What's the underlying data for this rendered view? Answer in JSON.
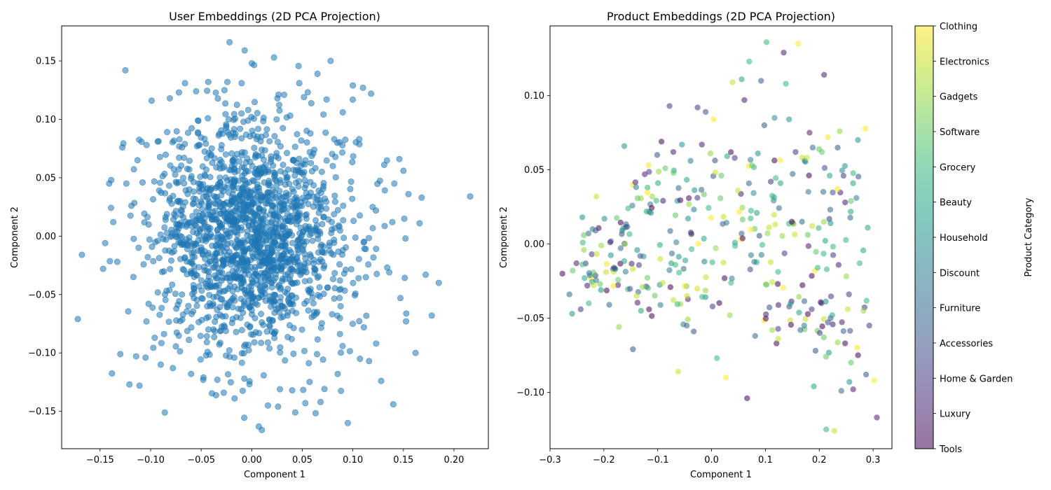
{
  "chart_data": [
    {
      "type": "scatter",
      "title": "User Embeddings (2D PCA Projection)",
      "xlabel": "Component 1",
      "ylabel": "Component 2",
      "xlim": [
        -0.188,
        0.234
      ],
      "ylim": [
        -0.182,
        0.18
      ],
      "xticks": [
        -0.15,
        -0.1,
        -0.05,
        0.0,
        0.05,
        0.1,
        0.15,
        0.2
      ],
      "xtick_labels": [
        "−0.15",
        "−0.10",
        "−0.05",
        "0.00",
        "0.05",
        "0.10",
        "0.15",
        "0.20"
      ],
      "yticks": [
        -0.15,
        -0.1,
        -0.05,
        0.0,
        0.05,
        0.1,
        0.15
      ],
      "ytick_labels": [
        "−0.15",
        "−0.10",
        "−0.05",
        "0.00",
        "0.05",
        "0.10",
        "0.15"
      ],
      "grid": false,
      "marker_color": "#1f77b4",
      "marker_alpha": 0.55,
      "series": [
        {
          "points": [
            [
              0.216,
              0.034
            ],
            [
              -0.172,
              -0.071
            ],
            [
              -0.168,
              -0.016
            ],
            [
              0.185,
              -0.04
            ],
            [
              0.178,
              -0.068
            ],
            [
              0.172,
              -0.033
            ],
            [
              0.168,
              0.033
            ],
            [
              0.166,
              0.011
            ],
            [
              0.162,
              -0.1
            ],
            [
              0.155,
              0.036
            ],
            [
              0.15,
              0.056
            ],
            [
              0.146,
              0.066
            ],
            [
              0.14,
              -0.144
            ],
            [
              0.152,
              -0.002
            ],
            [
              0.147,
              -0.053
            ],
            [
              0.141,
              0.045
            ],
            [
              0.139,
              0.012
            ],
            [
              0.136,
              -0.031
            ],
            [
              0.131,
              0.061
            ],
            [
              0.128,
              -0.124
            ],
            [
              -0.145,
              -0.006
            ],
            [
              -0.141,
              0.045
            ],
            [
              -0.139,
              0.048
            ],
            [
              -0.137,
              0.012
            ],
            [
              -0.133,
              -0.022
            ],
            [
              -0.13,
              -0.101
            ],
            [
              -0.128,
              0.076
            ],
            [
              -0.125,
              0.142
            ],
            [
              -0.124,
              0.045
            ],
            [
              -0.121,
              -0.127
            ],
            [
              -0.119,
              0.026
            ],
            [
              -0.117,
              -0.035
            ],
            [
              -0.113,
              0.065
            ],
            [
              -0.111,
              -0.128
            ],
            [
              -0.108,
              0.046
            ],
            [
              -0.105,
              -0.104
            ],
            [
              -0.104,
              0.078
            ],
            [
              -0.102,
              -0.058
            ],
            [
              -0.099,
              0.116
            ],
            [
              -0.096,
              -0.087
            ],
            [
              -0.093,
              0.081
            ],
            [
              -0.09,
              -0.11
            ],
            [
              -0.086,
              -0.151
            ],
            [
              -0.081,
              0.118
            ],
            [
              -0.078,
              -0.113
            ],
            [
              -0.072,
              0.123
            ],
            [
              -0.066,
              0.131
            ],
            [
              -0.06,
              -0.118
            ],
            [
              -0.055,
              0.124
            ],
            [
              -0.048,
              -0.123
            ],
            [
              -0.043,
              0.132
            ],
            [
              -0.034,
              -0.123
            ],
            [
              -0.027,
              0.125
            ],
            [
              -0.022,
              0.166
            ],
            [
              -0.017,
              -0.139
            ],
            [
              -0.01,
              0.131
            ],
            [
              -0.007,
              0.159
            ],
            [
              0.0,
              0.148
            ],
            [
              0.007,
              -0.163
            ],
            [
              0.01,
              -0.166
            ],
            [
              0.016,
              -0.145
            ],
            [
              0.022,
              0.153
            ],
            [
              0.026,
              -0.146
            ],
            [
              0.032,
              0.121
            ],
            [
              0.04,
              -0.132
            ],
            [
              0.047,
              0.131
            ],
            [
              0.053,
              -0.143
            ],
            [
              0.065,
              0.139
            ],
            [
              0.068,
              -0.142
            ],
            [
              0.074,
              0.117
            ],
            [
              0.078,
              0.15
            ],
            [
              0.085,
              -0.118
            ],
            [
              0.09,
              0.106
            ],
            [
              0.095,
              -0.16
            ],
            [
              0.1,
              0.129
            ],
            [
              0.107,
              -0.105
            ],
            [
              0.11,
              0.127
            ],
            [
              0.116,
              -0.107
            ],
            [
              0.118,
              0.122
            ],
            [
              0.123,
              -0.092
            ]
          ],
          "core_cluster_std": 0.048,
          "core_cluster_count": 1700,
          "core_cluster_seed": 7
        }
      ]
    },
    {
      "type": "scatter",
      "title": "Product Embeddings (2D PCA Projection)",
      "xlabel": "Component 1",
      "ylabel": "Component 2",
      "xlim": [
        -0.3,
        0.335
      ],
      "ylim": [
        -0.138,
        0.147
      ],
      "xticks": [
        -0.3,
        -0.2,
        -0.1,
        0.0,
        0.1,
        0.2,
        0.3
      ],
      "xtick_labels": [
        "−0.3",
        "−0.2",
        "−0.1",
        "0.0",
        "0.1",
        "0.2",
        "0.3"
      ],
      "yticks": [
        -0.1,
        -0.05,
        0.0,
        0.05,
        0.1
      ],
      "ytick_labels": [
        "−0.10",
        "−0.05",
        "0.00",
        "0.05",
        "0.10"
      ],
      "grid": false,
      "marker_alpha": 0.55,
      "colorbar_label": "Product Category",
      "categories": [
        "Tools",
        "Luxury",
        "Home & Garden",
        "Accessories",
        "Furniture",
        "Discount",
        "Household",
        "Beauty",
        "Grocery",
        "Software",
        "Gadgets",
        "Electronics",
        "Clothing"
      ],
      "colormap_stops": [
        "#440154",
        "#482878",
        "#3e4989",
        "#31688e",
        "#26828e",
        "#1f9e89",
        "#35b779",
        "#6ece58",
        "#b5de2b",
        "#fde725"
      ],
      "series": [
        {
          "points": [
            [
              0.307,
              -0.117,
              1
            ],
            [
              0.302,
              -0.092,
              12
            ],
            [
              0.293,
              -0.055,
              2
            ],
            [
              0.29,
              0.011,
              7
            ],
            [
              0.287,
              -0.088,
              3
            ],
            [
              0.282,
              -0.045,
              10
            ],
            [
              0.275,
              -0.013,
              8
            ],
            [
              0.272,
              -0.075,
              0
            ],
            [
              0.269,
              0.031,
              5
            ],
            [
              0.263,
              -0.098,
              1
            ],
            [
              0.259,
              -0.08,
              9
            ],
            [
              0.256,
              -0.093,
              6
            ],
            [
              0.253,
              -0.044,
              11
            ],
            [
              0.248,
              -0.067,
              0
            ],
            [
              0.245,
              0.046,
              2
            ],
            [
              0.241,
              -0.099,
              4
            ],
            [
              0.238,
              0.076,
              10
            ],
            [
              0.234,
              0.037,
              12
            ],
            [
              0.228,
              -0.126,
              11
            ],
            [
              0.224,
              -0.048,
              7
            ],
            [
              0.221,
              0.014,
              6
            ],
            [
              0.216,
              0.072,
              12
            ],
            [
              0.213,
              -0.125,
              8
            ],
            [
              0.209,
              0.114,
              1
            ],
            [
              0.205,
              0.062,
              9
            ],
            [
              0.201,
              -0.06,
              2
            ],
            [
              0.197,
              -0.016,
              8
            ],
            [
              0.193,
              -0.072,
              3
            ],
            [
              0.19,
              -0.096,
              7
            ],
            [
              0.186,
              -0.044,
              2
            ],
            [
              0.182,
              0.075,
              1
            ],
            [
              0.177,
              0.058,
              11
            ],
            [
              0.172,
              -0.055,
              5
            ],
            [
              0.168,
              0.015,
              4
            ],
            [
              0.161,
              0.135,
              12
            ],
            [
              0.156,
              0.062,
              2
            ],
            [
              0.149,
              0.015,
              0
            ],
            [
              0.144,
              0.084,
              6
            ],
            [
              0.138,
              0.108,
              8
            ],
            [
              0.134,
              0.129,
              1
            ],
            [
              0.128,
              0.041,
              7
            ],
            [
              0.123,
              -0.027,
              0
            ],
            [
              0.117,
              0.085,
              6
            ],
            [
              0.11,
              0.042,
              2
            ],
            [
              0.102,
              0.136,
              8
            ],
            [
              0.098,
              0.08,
              3
            ],
            [
              0.092,
              0.11,
              3
            ],
            [
              0.086,
              0.061,
              6
            ],
            [
              0.081,
              -0.062,
              4
            ],
            [
              0.075,
              0.053,
              9
            ],
            [
              0.07,
              0.123,
              8
            ],
            [
              0.066,
              -0.104,
              0
            ],
            [
              0.061,
              0.097,
              1
            ],
            [
              0.056,
              0.111,
              7
            ],
            [
              0.049,
              0.036,
              11
            ],
            [
              0.043,
              0.058,
              2
            ],
            [
              0.039,
              0.109,
              11
            ],
            [
              0.034,
              -0.048,
              10
            ],
            [
              0.027,
              -0.09,
              12
            ],
            [
              0.018,
              0.046,
              9
            ],
            [
              0.01,
              -0.077,
              8
            ],
            [
              0.004,
              0.084,
              12
            ],
            [
              -0.002,
              0.061,
              10
            ],
            [
              -0.011,
              0.089,
              3
            ],
            [
              -0.018,
              0.067,
              1
            ],
            [
              -0.026,
              0.092,
              2
            ],
            [
              -0.033,
              -0.059,
              3
            ],
            [
              -0.039,
              0.056,
              5
            ],
            [
              -0.046,
              -0.055,
              4
            ],
            [
              -0.055,
              0.067,
              6
            ],
            [
              -0.062,
              -0.086,
              11
            ],
            [
              -0.071,
              0.062,
              1
            ],
            [
              -0.078,
              0.093,
              2
            ],
            [
              -0.086,
              0.051,
              9
            ],
            [
              -0.093,
              0.069,
              0
            ],
            [
              -0.101,
              0.06,
              3
            ],
            [
              -0.11,
              0.032,
              10
            ],
            [
              -0.117,
              0.053,
              12
            ],
            [
              -0.124,
              0.047,
              1
            ],
            [
              -0.131,
              -0.045,
              7
            ],
            [
              -0.139,
              -0.035,
              11
            ],
            [
              -0.146,
              -0.071,
              3
            ],
            [
              -0.155,
              0.024,
              8
            ],
            [
              -0.162,
              0.066,
              6
            ],
            [
              -0.172,
              -0.056,
              10
            ],
            [
              -0.181,
              -0.016,
              2
            ],
            [
              -0.19,
              -0.041,
              4
            ],
            [
              -0.199,
              0.017,
              6
            ],
            [
              -0.207,
              -0.027,
              9
            ],
            [
              -0.214,
              0.032,
              11
            ],
            [
              -0.221,
              0.01,
              5
            ],
            [
              -0.228,
              -0.04,
              8
            ],
            [
              -0.236,
              -0.023,
              7
            ],
            [
              -0.243,
              -0.044,
              2
            ],
            [
              -0.251,
              -0.013,
              1
            ],
            [
              -0.258,
              -0.018,
              9
            ],
            [
              -0.264,
              -0.034,
              4
            ],
            [
              -0.277,
              -0.02,
              0
            ],
            [
              -0.259,
              -0.047,
              6
            ],
            [
              -0.24,
              0.018,
              6
            ]
          ],
          "core_cluster_count": 290,
          "core_cluster_seed": 19
        }
      ]
    }
  ]
}
